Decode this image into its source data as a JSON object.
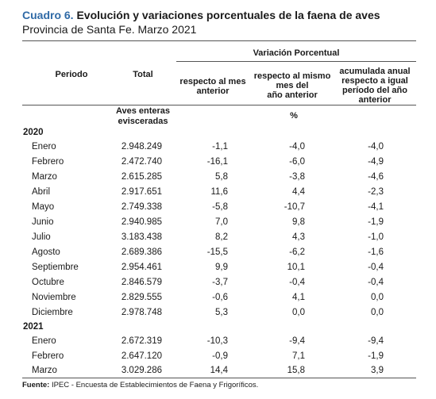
{
  "title": {
    "lead": "Cuadro 6.",
    "text": "Evolución y variaciones porcentuales de la faena de aves",
    "subtitle": "Provincia de Santa Fe. Marzo 2021"
  },
  "headers": {
    "periodo": "Periodo",
    "total": "Total",
    "variacion": "Variación Porcentual",
    "mes_anterior": [
      "respecto al mes",
      "anterior"
    ],
    "mismo_mes": [
      "respecto al mismo",
      "mes del",
      "año anterior"
    ],
    "acumulada": [
      "acumulada anual",
      "respecto a igual",
      "período del año",
      "anterior"
    ],
    "unit_total": [
      "Aves enteras",
      "evisceradas"
    ],
    "unit_pct": "%"
  },
  "years": [
    "2020",
    "2021"
  ],
  "rows_2020": [
    {
      "periodo": "Enero",
      "total": "2.948.249",
      "mes": "-1,1",
      "anio": "-4,0",
      "acum": "-4,0"
    },
    {
      "periodo": "Febrero",
      "total": "2.472.740",
      "mes": "-16,1",
      "anio": "-6,0",
      "acum": "-4,9"
    },
    {
      "periodo": "Marzo",
      "total": "2.615.285",
      "mes": "5,8",
      "anio": "-3,8",
      "acum": "-4,6"
    },
    {
      "periodo": "Abril",
      "total": "2.917.651",
      "mes": "11,6",
      "anio": "4,4",
      "acum": "-2,3"
    },
    {
      "periodo": "Mayo",
      "total": "2.749.338",
      "mes": "-5,8",
      "anio": "-10,7",
      "acum": "-4,1"
    },
    {
      "periodo": "Junio",
      "total": "2.940.985",
      "mes": "7,0",
      "anio": "9,8",
      "acum": "-1,9"
    },
    {
      "periodo": "Julio",
      "total": "3.183.438",
      "mes": "8,2",
      "anio": "4,3",
      "acum": "-1,0"
    },
    {
      "periodo": "Agosto",
      "total": "2.689.386",
      "mes": "-15,5",
      "anio": "-6,2",
      "acum": "-1,6"
    },
    {
      "periodo": "Septiembre",
      "total": "2.954.461",
      "mes": "9,9",
      "anio": "10,1",
      "acum": "-0,4"
    },
    {
      "periodo": "Octubre",
      "total": "2.846.579",
      "mes": "-3,7",
      "anio": "-0,4",
      "acum": "-0,4"
    },
    {
      "periodo": "Noviembre",
      "total": "2.829.555",
      "mes": "-0,6",
      "anio": "4,1",
      "acum": "0,0"
    },
    {
      "periodo": "Diciembre",
      "total": "2.978.748",
      "mes": "5,3",
      "anio": "0,0",
      "acum": "0,0"
    }
  ],
  "rows_2021": [
    {
      "periodo": "Enero",
      "total": "2.672.319",
      "mes": "-10,3",
      "anio": "-9,4",
      "acum": "-9,4"
    },
    {
      "periodo": "Febrero",
      "total": "2.647.120",
      "mes": "-0,9",
      "anio": "7,1",
      "acum": "-1,9"
    },
    {
      "periodo": "Marzo",
      "total": "3.029.286",
      "mes": "14,4",
      "anio": "15,8",
      "acum": "3,9"
    }
  ],
  "source": {
    "label": "Fuente:",
    "text": "IPEC - Encuesta de Establecimientos de Faena y Frigoríficos."
  }
}
